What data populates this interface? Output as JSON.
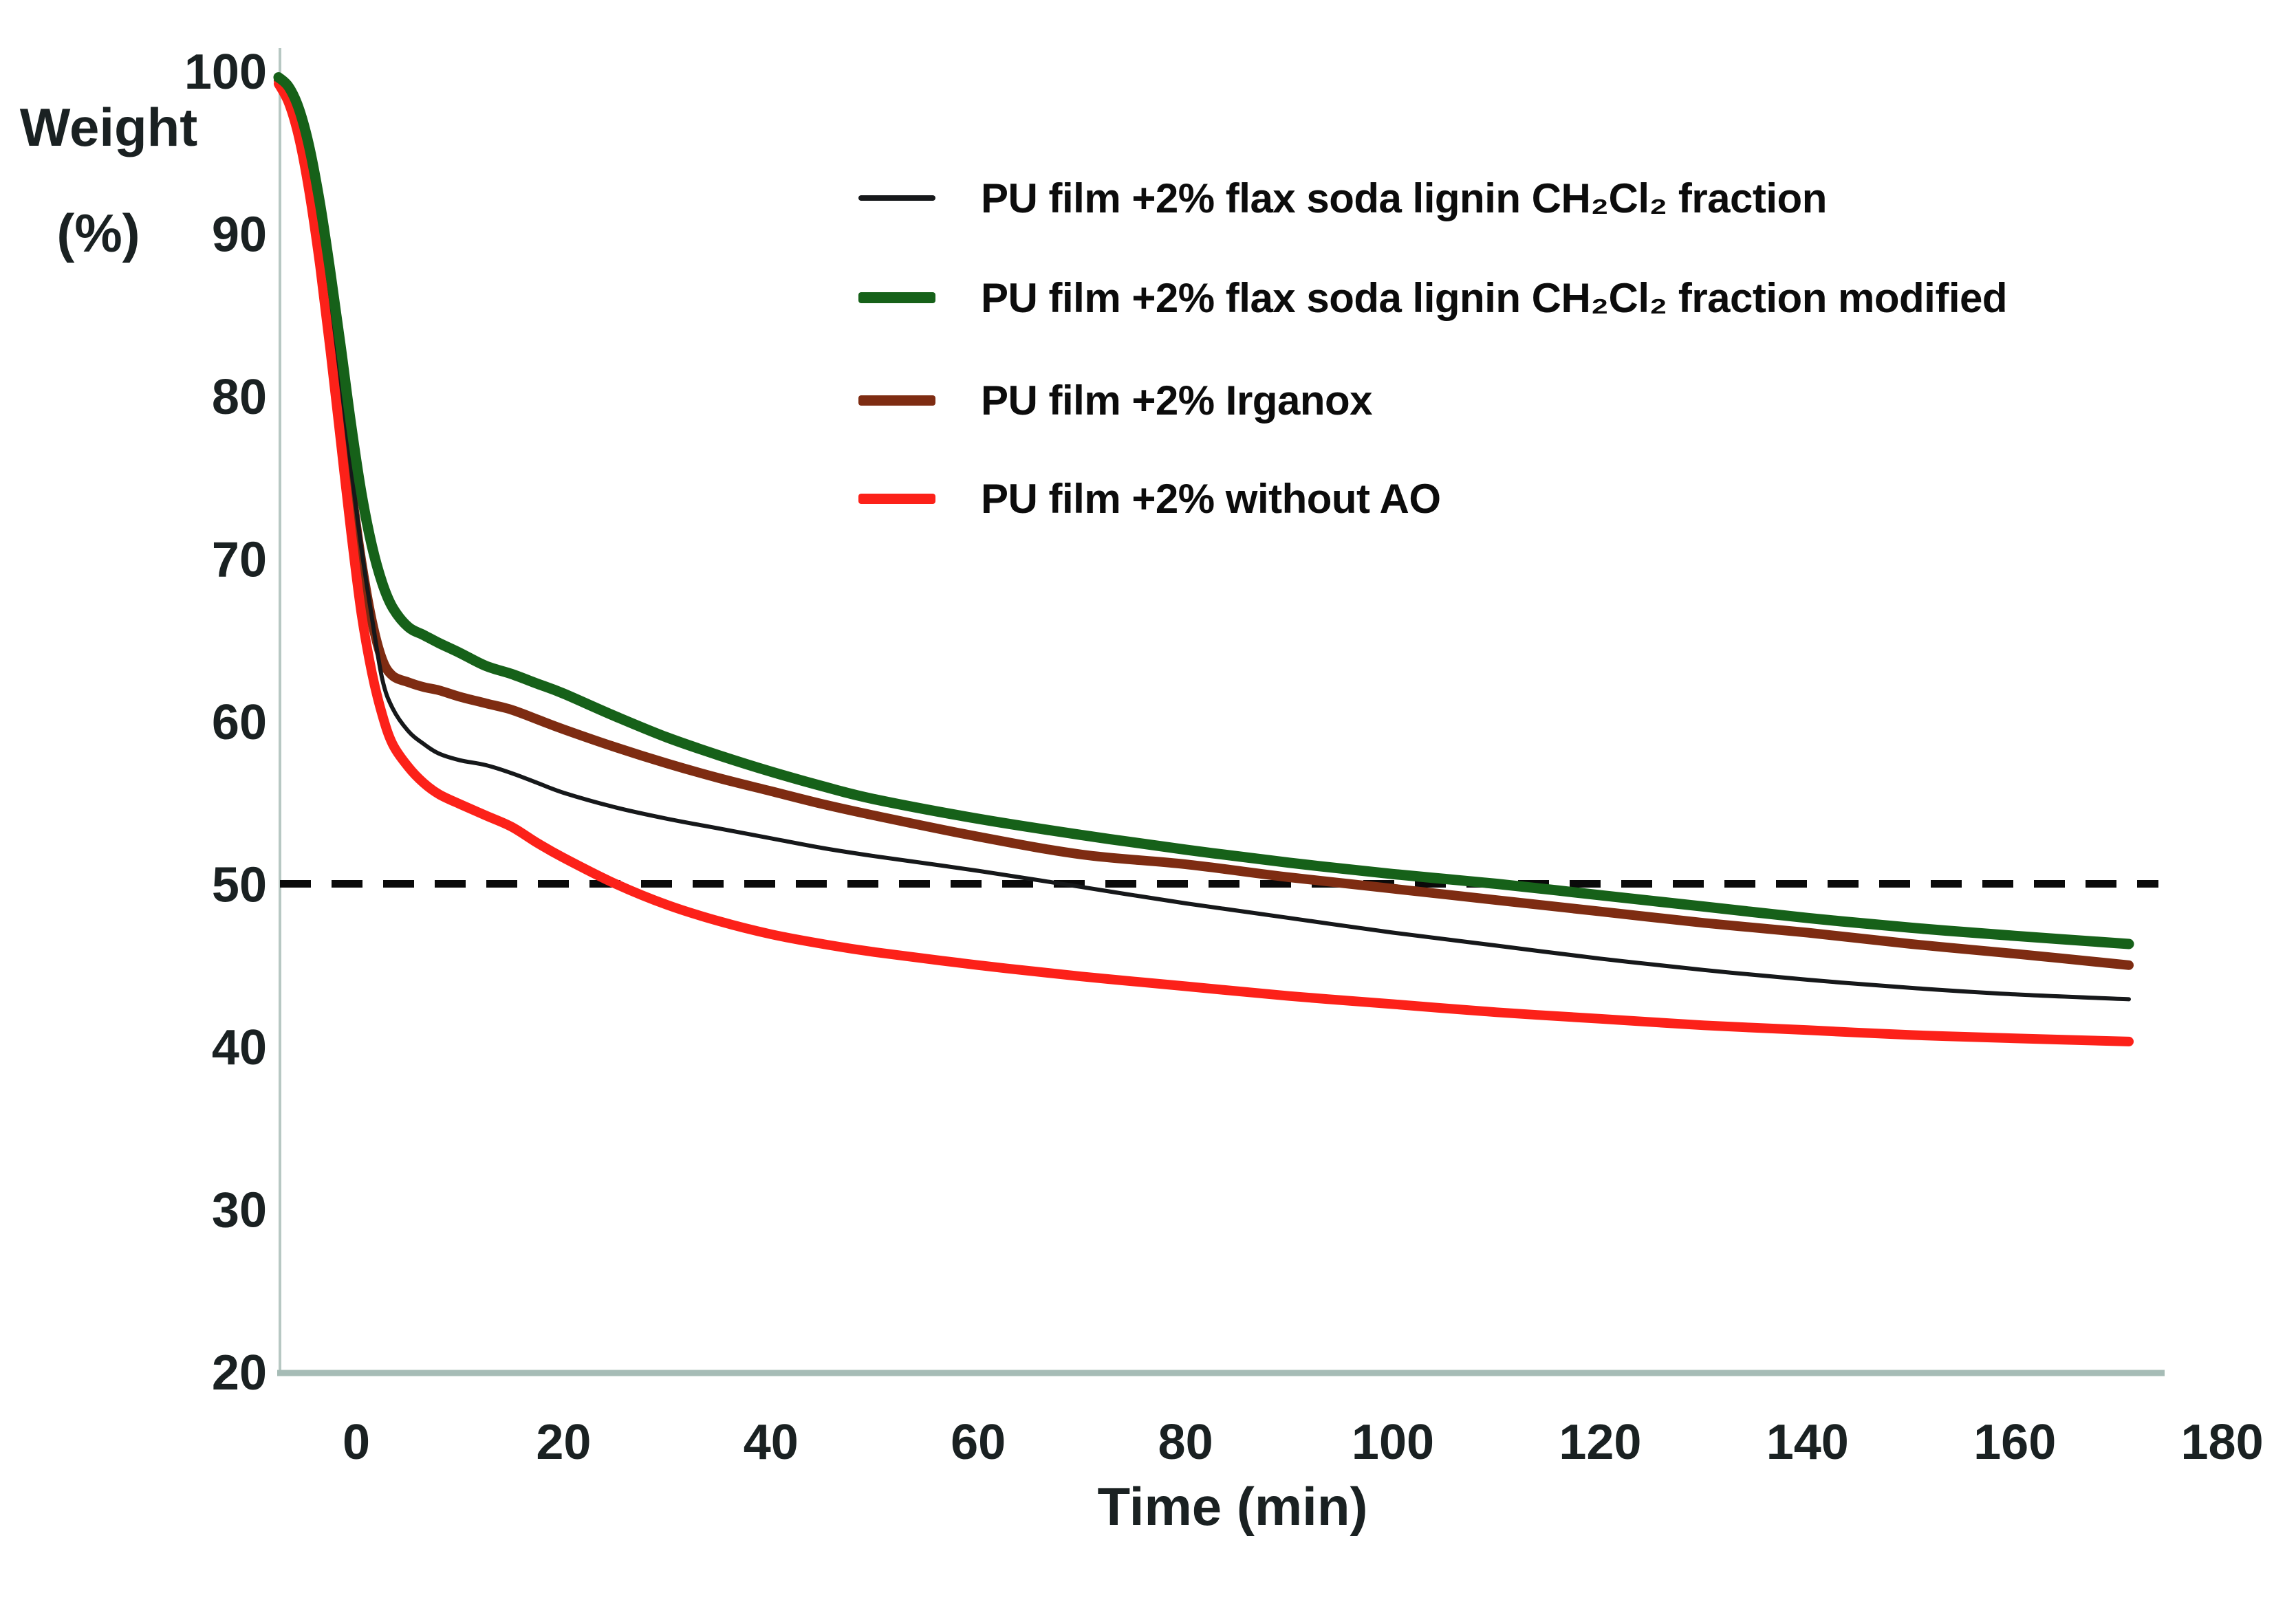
{
  "figure": {
    "ylabel_line1": "Weight",
    "ylabel_line2": "(%)",
    "xlabel": "Time (min)"
  },
  "colors": {
    "black_series": "#16181a",
    "green_series": "#166119",
    "brown_series": "#7e2c12",
    "red_series": "#fc2119",
    "reference_line": "#0a0a0a",
    "y_axis_line": "#b7c8c3",
    "x_axis_line": "#a6bcb6",
    "tick_text": "#1a2122"
  },
  "legend": {
    "items": [
      {
        "label": "PU film +2% flax soda lignin CH₂Cl₂ fraction",
        "color": "#16181a",
        "thickness": 8
      },
      {
        "label": "PU film +2% flax soda lignin CH₂Cl₂ fraction modified",
        "color": "#166119",
        "thickness": 16
      },
      {
        "label": "PU film +2% Irganox",
        "color": "#7e2c12",
        "thickness": 15
      },
      {
        "label": "PU film +2% without AO",
        "color": "#fc2119",
        "thickness": 15
      }
    ]
  },
  "chart_data": {
    "type": "line",
    "title": "",
    "xlabel": "Time (min)",
    "ylabel": "Weight (%)",
    "xlim": [
      -7.5,
      180
    ],
    "ylim": [
      20,
      100
    ],
    "grid": false,
    "legend_position": "upper right",
    "x_ticks": [
      0,
      20,
      40,
      60,
      80,
      100,
      120,
      140,
      160,
      180
    ],
    "y_ticks": [
      20,
      30,
      40,
      50,
      60,
      70,
      80,
      90,
      100
    ],
    "reference_line": {
      "y": 50,
      "style": "dashed"
    },
    "x_minutes": [
      -7.5,
      -6.5,
      -5.5,
      -4.5,
      -3.5,
      -2.5,
      -1.5,
      -0.5,
      0.5,
      1.5,
      2.5,
      3.5,
      5,
      6.5,
      8,
      10,
      12.5,
      15,
      17.5,
      20,
      25,
      30,
      35,
      40,
      45,
      50,
      60,
      70,
      80,
      90,
      100,
      110,
      120,
      130,
      140,
      150,
      160,
      171
    ],
    "series": [
      {
        "name": "PU film +2% Irganox",
        "color": "#7e2c12",
        "stroke_width": 14,
        "values": [
          99.4,
          98.5,
          96.6,
          93.6,
          89.6,
          84.8,
          79.6,
          74.4,
          69.8,
          66.2,
          63.8,
          62.8,
          62.4,
          62.1,
          61.9,
          61.5,
          61.1,
          60.7,
          60.1,
          59.5,
          58.4,
          57.4,
          56.5,
          55.7,
          54.9,
          54.2,
          52.9,
          51.8,
          51.2,
          50.4,
          49.7,
          49.0,
          48.3,
          47.6,
          47.0,
          46.3,
          45.7,
          45.0
        ]
      },
      {
        "name": "PU film +2% without AO",
        "color": "#fc2119",
        "stroke_width": 14,
        "values": [
          99.2,
          98.0,
          95.8,
          92.4,
          88.0,
          82.8,
          77.2,
          71.6,
          66.6,
          63.0,
          60.4,
          58.6,
          57.2,
          56.2,
          55.5,
          54.9,
          54.2,
          53.5,
          52.5,
          51.6,
          50.0,
          48.7,
          47.7,
          46.9,
          46.3,
          45.8,
          45.0,
          44.3,
          43.7,
          43.1,
          42.6,
          42.1,
          41.7,
          41.3,
          41.0,
          40.7,
          40.5,
          40.3
        ]
      },
      {
        "name": "PU film +2% flax soda lignin CH₂Cl₂ fraction",
        "color": "#16181a",
        "stroke_width": 6,
        "values": [
          99.5,
          98.7,
          97.2,
          94.6,
          90.8,
          86.2,
          81.0,
          75.6,
          70.6,
          66.4,
          62.6,
          60.8,
          59.4,
          58.6,
          58.0,
          57.6,
          57.3,
          56.8,
          56.2,
          55.6,
          54.7,
          54.0,
          53.4,
          52.8,
          52.2,
          51.7,
          50.8,
          49.8,
          48.8,
          47.9,
          47.0,
          46.2,
          45.4,
          44.7,
          44.1,
          43.6,
          43.2,
          42.9
        ]
      },
      {
        "name": "PU film +2% flax soda lignin CH₂Cl₂ fraction modified",
        "color": "#166119",
        "stroke_width": 15,
        "values": [
          99.6,
          99.0,
          97.6,
          95.2,
          91.8,
          87.6,
          83.0,
          78.2,
          74.0,
          70.8,
          68.5,
          67.0,
          65.8,
          65.3,
          64.8,
          64.2,
          63.4,
          62.9,
          62.3,
          61.7,
          60.3,
          59.0,
          57.9,
          56.9,
          56.0,
          55.2,
          54.0,
          53.0,
          52.1,
          51.3,
          50.6,
          50.0,
          49.3,
          48.6,
          47.9,
          47.3,
          46.8,
          46.3
        ]
      }
    ]
  }
}
